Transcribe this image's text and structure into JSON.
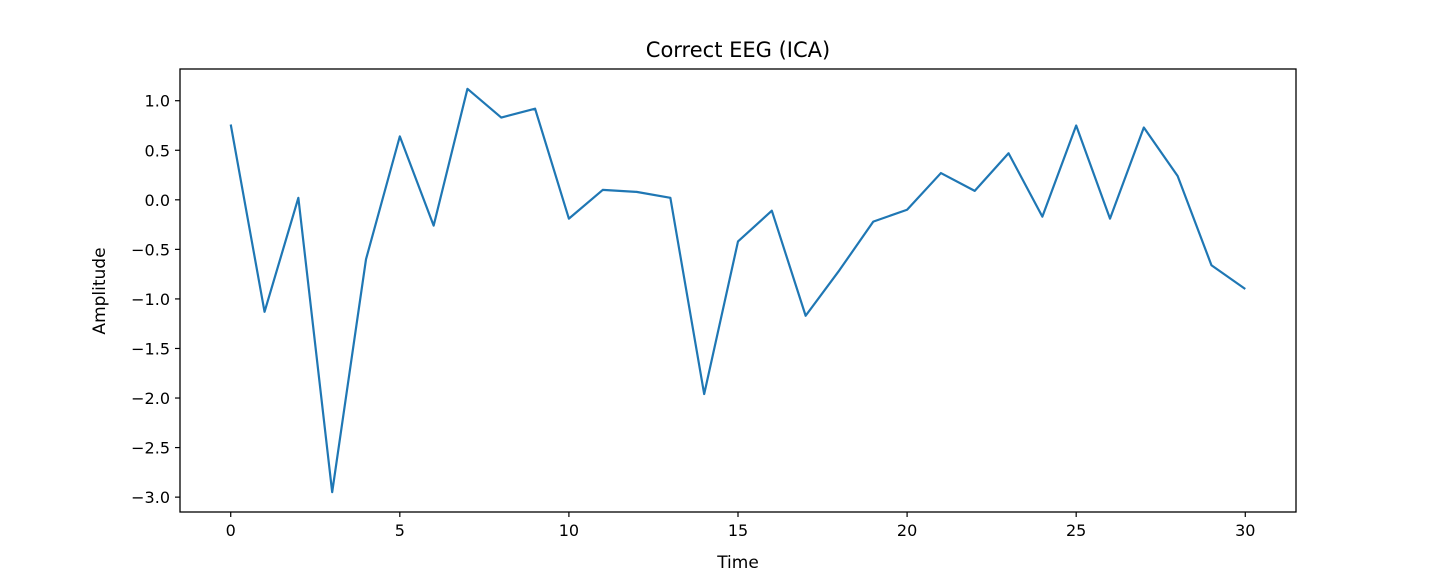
{
  "chart_data": {
    "type": "line",
    "title": "Correct EEG (ICA)",
    "xlabel": "Time",
    "ylabel": "Amplitude",
    "xlim": [
      -1.5,
      31.5
    ],
    "ylim": [
      -3.15,
      1.32
    ],
    "xticks": [
      0,
      5,
      10,
      15,
      20,
      25,
      30
    ],
    "yticks": [
      1.0,
      0.5,
      0.0,
      -0.5,
      -1.0,
      -1.5,
      -2.0,
      -2.5,
      -3.0
    ],
    "ytick_labels": [
      "1.0",
      "0.5",
      "0.0",
      "−0.5",
      "−1.0",
      "−1.5",
      "−2.0",
      "−2.5",
      "−3.0"
    ],
    "grid": false,
    "series": [
      {
        "color": "#1f77b4",
        "x": [
          0,
          1,
          2,
          3,
          4,
          5,
          6,
          7,
          8,
          9,
          10,
          11,
          12,
          13,
          14,
          15,
          16,
          17,
          18,
          19,
          20,
          21,
          22,
          23,
          24,
          25,
          26,
          27,
          28,
          29,
          30
        ],
        "values": [
          0.76,
          -1.13,
          0.02,
          -2.95,
          -0.6,
          0.64,
          -0.26,
          1.12,
          0.83,
          0.92,
          -0.19,
          0.1,
          0.08,
          0.02,
          -1.96,
          -0.42,
          -0.11,
          -1.17,
          -0.71,
          -0.22,
          -0.1,
          0.27,
          0.09,
          0.47,
          -0.17,
          0.75,
          -0.19,
          0.73,
          0.24,
          -0.66,
          -0.9
        ]
      }
    ]
  }
}
